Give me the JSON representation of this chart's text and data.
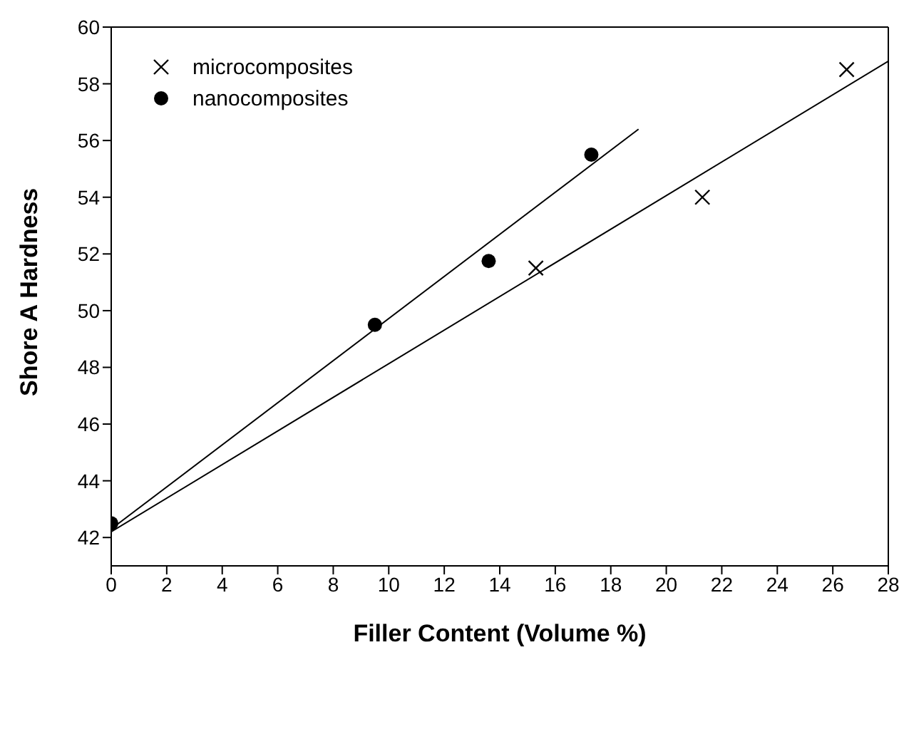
{
  "chart_data": {
    "type": "scatter",
    "xlabel": "Filler Content (Volume %)",
    "ylabel": "Shore A  Hardness",
    "xlim": [
      0,
      28
    ],
    "xticks": [
      0,
      2,
      4,
      6,
      8,
      10,
      12,
      14,
      16,
      18,
      20,
      22,
      24,
      26,
      28
    ],
    "ylim": [
      41,
      60
    ],
    "yticks": [
      42,
      44,
      46,
      48,
      50,
      52,
      54,
      56,
      58,
      60
    ],
    "legend": "top left",
    "series": [
      {
        "name": "microcomposites",
        "marker": "cross",
        "color": "#000000",
        "x": [
          15.3,
          21.3,
          26.5
        ],
        "values": [
          51.5,
          54,
          58.5
        ]
      },
      {
        "name": "nanocomposites",
        "marker": "circle",
        "color": "#000000",
        "x": [
          0,
          9.5,
          13.6,
          17.3
        ],
        "values": [
          42.5,
          49.5,
          51.75,
          55.5
        ]
      },
      {
        "type": "line",
        "color": "#000000",
        "x": [
          0,
          28
        ],
        "values": [
          42.2,
          58.8
        ]
      },
      {
        "type": "line",
        "color": "#000000",
        "x": [
          0,
          19
        ],
        "values": [
          42.3,
          56.4
        ]
      }
    ]
  }
}
